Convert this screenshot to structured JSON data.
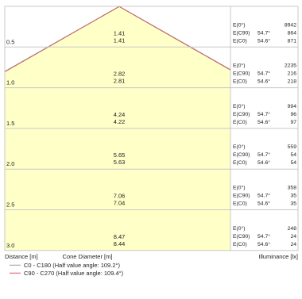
{
  "chart_data": {
    "type": "cone_diagram",
    "x_label": "Distance [m]",
    "center_label": "Cone Diameter [m]",
    "right_label": "Illuminance [lx]",
    "legend": [
      {
        "name": "C0 - C180 (Half value angle: 109.2°)",
        "color": "#9a9a9a"
      },
      {
        "name": "C90 - C270 (Half value angle: 109.4°)",
        "color": "#d9535f"
      }
    ],
    "label_e0": "E(0°)",
    "label_ec90": "E(C90)",
    "label_ec0": "E(C0)",
    "rows": [
      {
        "distance": "0.5",
        "diam_c90": "1.41",
        "diam_c0": "1.41",
        "e0": "8942",
        "ang_c90": "54.7°",
        "e_c90": "864",
        "ang_c0": "54.6°",
        "e_c0": "871"
      },
      {
        "distance": "1.0",
        "diam_c90": "2.82",
        "diam_c0": "2.81",
        "e0": "2235",
        "ang_c90": "54.7°",
        "e_c90": "216",
        "ang_c0": "54.6°",
        "e_c0": "218"
      },
      {
        "distance": "1.5",
        "diam_c90": "4.24",
        "diam_c0": "4.22",
        "e0": "994",
        "ang_c90": "54.7°",
        "e_c90": "96",
        "ang_c0": "54.6°",
        "e_c0": "97"
      },
      {
        "distance": "2.0",
        "diam_c90": "5.65",
        "diam_c0": "5.63",
        "e0": "559",
        "ang_c90": "54.7°",
        "e_c90": "54",
        "ang_c0": "54.6°",
        "e_c0": "54"
      },
      {
        "distance": "2.5",
        "diam_c90": "7.06",
        "diam_c0": "7.04",
        "e0": "358",
        "ang_c90": "54.7°",
        "e_c90": "35",
        "ang_c0": "54.6°",
        "e_c0": "35"
      },
      {
        "distance": "3.0",
        "diam_c90": "8.47",
        "diam_c0": "8.44",
        "e0": "248",
        "ang_c90": "54.7°",
        "e_c90": "24",
        "ang_c0": "54.6°",
        "e_c0": "24"
      }
    ],
    "colors": {
      "fill": "#ffffc8",
      "grid": "#c8c8c8",
      "c0_line": "#9a9a9a",
      "c90_line": "#d9535f"
    }
  }
}
